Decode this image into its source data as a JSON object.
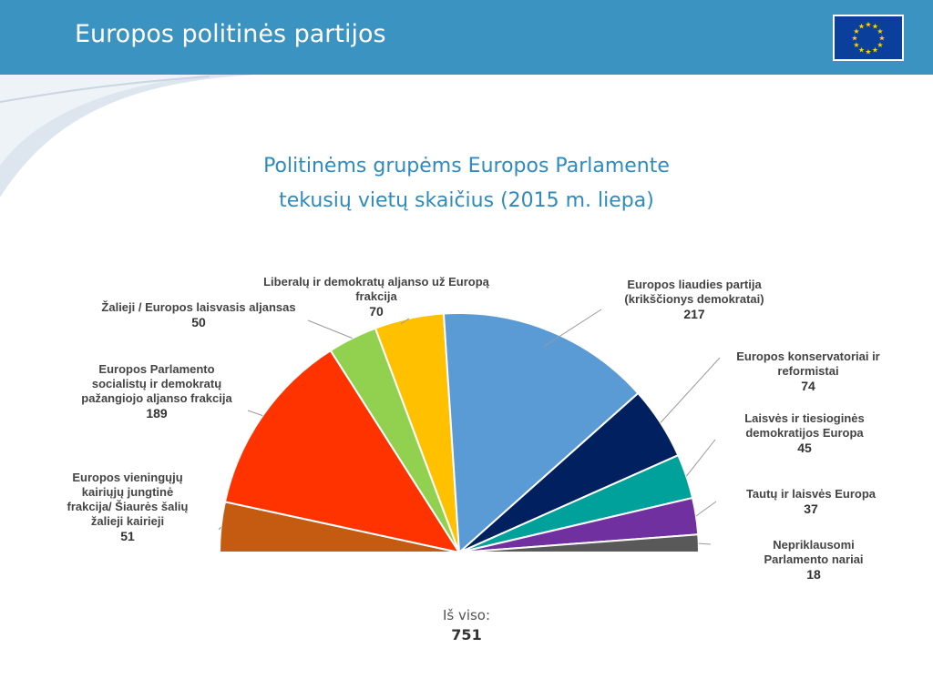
{
  "header": {
    "title": "Europos politinės partijos",
    "flag_icon": "eu-flag-icon"
  },
  "colors": {
    "header_bg": "#3b93c2",
    "title_text": "#2e8bbd",
    "flag_bg": "#0b3f9c",
    "flag_star": "#ffd200"
  },
  "chart_data": {
    "type": "pie",
    "variant": "half-donut parliament chart",
    "title_lines": [
      "Politinėms grupėms Europos Parlamente",
      "tekusių vietų skaičius (2015 m. liepa)"
    ],
    "slices": [
      {
        "label_lines": [
          "Europos vieningųjų",
          "kairiųjų jungtinė",
          "frakcija/ Šiaurės šalių",
          "žalieji kairieji"
        ],
        "value": 51,
        "color": "#c55a11"
      },
      {
        "label_lines": [
          "Europos Parlamento",
          "socialistų ir demokratų",
          "pažangiojo aljanso frakcija"
        ],
        "value": 189,
        "color": "#ff3300"
      },
      {
        "label_lines": [
          "Žalieji / Europos laisvasis aljansas"
        ],
        "value": 50,
        "color": "#92d050"
      },
      {
        "label_lines": [
          "Liberalų ir demokratų aljanso už Europą",
          "frakcija"
        ],
        "value": 70,
        "color": "#ffc000"
      },
      {
        "label_lines": [
          "Europos liaudies partija",
          "(krikščionys demokratai)"
        ],
        "value": 217,
        "color": "#5b9bd5"
      },
      {
        "label_lines": [
          "Europos konservatoriai ir",
          "reformistai"
        ],
        "value": 74,
        "color": "#002060"
      },
      {
        "label_lines": [
          "Laisvės ir tiesioginės",
          "demokratijos Europa"
        ],
        "value": 45,
        "color": "#00a19a"
      },
      {
        "label_lines": [
          "Tautų ir laisvės Europa"
        ],
        "value": 37,
        "color": "#7030a0"
      },
      {
        "label_lines": [
          "Nepriklausomi",
          "Parlamento nariai"
        ],
        "value": 18,
        "color": "#595959"
      }
    ],
    "total_caption": "Iš viso:",
    "total": 751
  }
}
